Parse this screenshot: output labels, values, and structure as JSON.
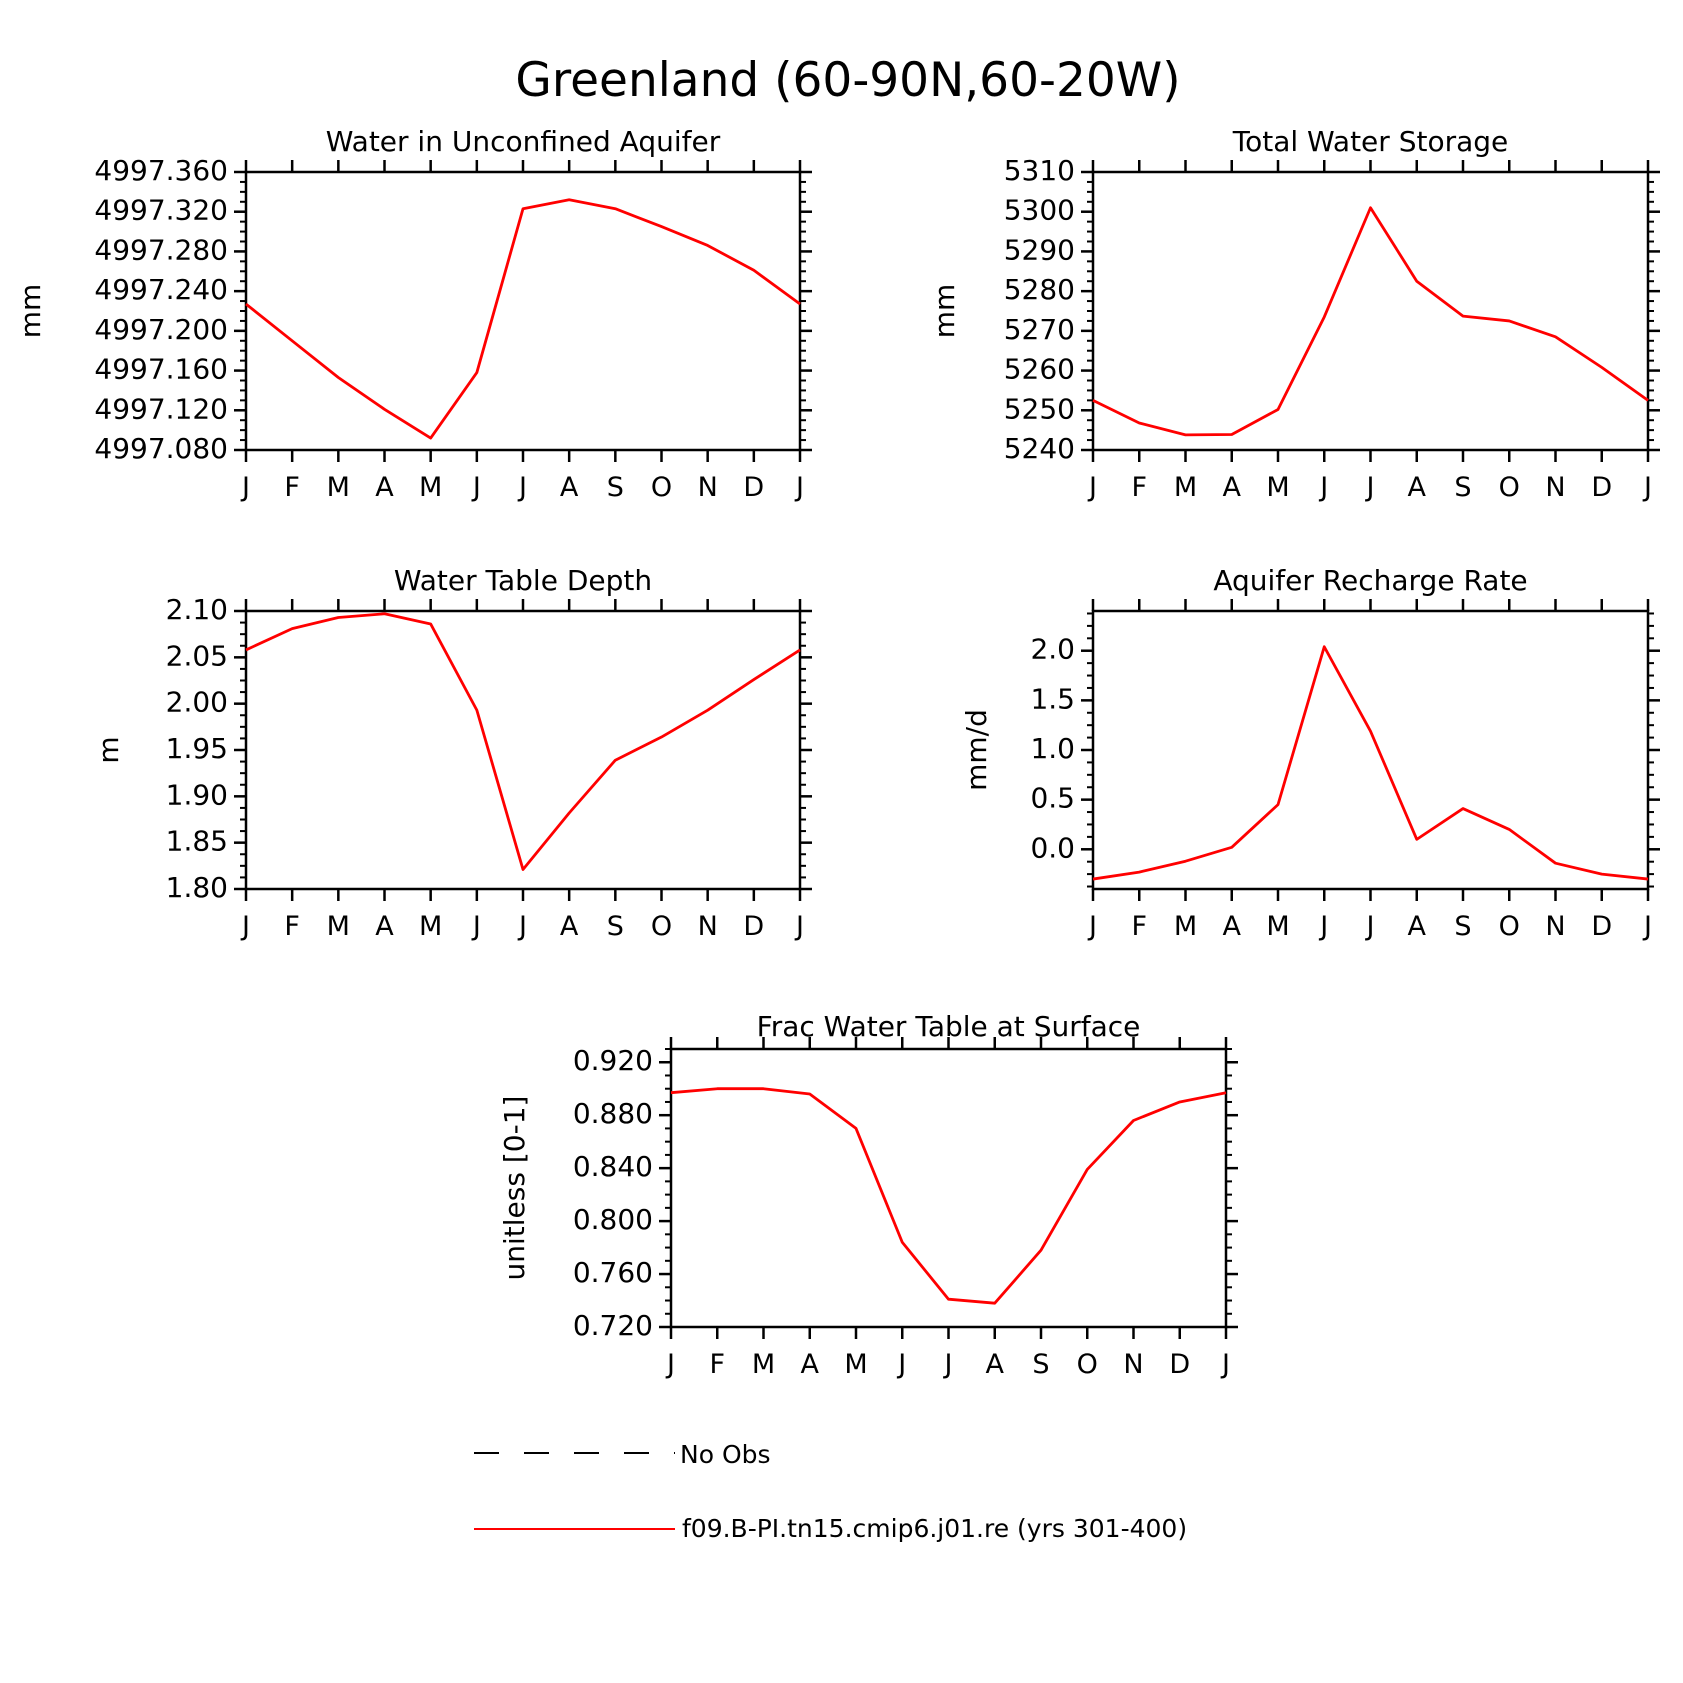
{
  "title": "Greenland (60-90N,60-20W)",
  "colors": {
    "series": "#ff0000",
    "axis": "#000000",
    "no_obs": "#000000"
  },
  "legend": {
    "placement": "bottom-center",
    "entries": [
      {
        "label": "No Obs",
        "style": "dashed",
        "color": "#000000"
      },
      {
        "label": "f09.B-PI.tn15.cmip6.j01.re (yrs 301-400)",
        "style": "solid",
        "color": "#ff0000"
      }
    ]
  },
  "chart_data": [
    {
      "type": "line",
      "title": "Water in Unconfined Aquifer",
      "xlabel": "",
      "ylabel": "mm",
      "categories": [
        "J",
        "F",
        "M",
        "A",
        "M",
        "J",
        "J",
        "A",
        "S",
        "O",
        "N",
        "D",
        "J"
      ],
      "ylim": [
        4997.08,
        4997.36
      ],
      "yticks": [
        4997.08,
        4997.12,
        4997.16,
        4997.2,
        4997.24,
        4997.28,
        4997.32,
        4997.36
      ],
      "ytick_labels": [
        "4997.080",
        "4997.120",
        "4997.160",
        "4997.200",
        "4997.240",
        "4997.280",
        "4997.320",
        "4997.360"
      ],
      "grid": false,
      "series": [
        {
          "name": "f09.B-PI.tn15.cmip6.j01.re (yrs 301-400)",
          "values": [
            4997.227,
            4997.19,
            4997.153,
            4997.121,
            4997.092,
            4997.158,
            4997.323,
            4997.332,
            4997.323,
            4997.305,
            4997.286,
            4997.261,
            4997.227
          ]
        }
      ]
    },
    {
      "type": "line",
      "title": "Total Water Storage",
      "xlabel": "",
      "ylabel": "mm",
      "categories": [
        "J",
        "F",
        "M",
        "A",
        "M",
        "J",
        "J",
        "A",
        "S",
        "O",
        "N",
        "D",
        "J"
      ],
      "ylim": [
        5240,
        5310
      ],
      "yticks": [
        5240,
        5250,
        5260,
        5270,
        5280,
        5290,
        5300,
        5310
      ],
      "ytick_labels": [
        "5240",
        "5250",
        "5260",
        "5270",
        "5280",
        "5290",
        "5300",
        "5310"
      ],
      "grid": false,
      "series": [
        {
          "name": "f09.B-PI.tn15.cmip6.j01.re (yrs 301-400)",
          "values": [
            5252.5,
            5246.8,
            5243.8,
            5243.9,
            5250.2,
            5273.5,
            5301,
            5282.5,
            5273.7,
            5272.5,
            5268.5,
            5260.8,
            5252.5
          ]
        }
      ]
    },
    {
      "type": "line",
      "title": "Water Table Depth",
      "xlabel": "",
      "ylabel": "m",
      "categories": [
        "J",
        "F",
        "M",
        "A",
        "M",
        "J",
        "J",
        "A",
        "S",
        "O",
        "N",
        "D",
        "J"
      ],
      "ylim": [
        1.8,
        2.1
      ],
      "yticks": [
        1.8,
        1.85,
        1.9,
        1.95,
        2.0,
        2.05,
        2.1
      ],
      "ytick_labels": [
        "1.80",
        "1.85",
        "1.90",
        "1.95",
        "2.00",
        "2.05",
        "2.10"
      ],
      "grid": false,
      "series": [
        {
          "name": "f09.B-PI.tn15.cmip6.j01.re (yrs 301-400)",
          "values": [
            2.058,
            2.081,
            2.093,
            2.097,
            2.086,
            1.993,
            1.821,
            1.882,
            1.939,
            1.964,
            1.993,
            2.026,
            2.058
          ]
        }
      ]
    },
    {
      "type": "line",
      "title": "Aquifer Recharge Rate",
      "xlabel": "",
      "ylabel": "mm/d",
      "categories": [
        "J",
        "F",
        "M",
        "A",
        "M",
        "J",
        "J",
        "A",
        "S",
        "O",
        "N",
        "D",
        "J"
      ],
      "ylim": [
        -0.4,
        2.4
      ],
      "yticks": [
        0.0,
        0.5,
        1.0,
        1.5,
        2.0
      ],
      "ytick_labels": [
        "0.0",
        "0.5",
        "1.0",
        "1.5",
        "2.0"
      ],
      "grid": false,
      "series": [
        {
          "name": "f09.B-PI.tn15.cmip6.j01.re (yrs 301-400)",
          "values": [
            -0.3,
            -0.23,
            -0.12,
            0.02,
            0.45,
            2.04,
            1.19,
            0.1,
            0.41,
            0.2,
            -0.14,
            -0.25,
            -0.3
          ]
        }
      ]
    },
    {
      "type": "line",
      "title": "Frac Water Table at Surface",
      "xlabel": "",
      "ylabel": "unitless [0-1]",
      "categories": [
        "J",
        "F",
        "M",
        "A",
        "M",
        "J",
        "J",
        "A",
        "S",
        "O",
        "N",
        "D",
        "J"
      ],
      "ylim": [
        0.72,
        0.93
      ],
      "yticks": [
        0.72,
        0.76,
        0.8,
        0.84,
        0.88,
        0.92
      ],
      "ytick_labels": [
        "0.720",
        "0.760",
        "0.800",
        "0.840",
        "0.880",
        "0.920"
      ],
      "grid": false,
      "series": [
        {
          "name": "f09.B-PI.tn15.cmip6.j01.re (yrs 301-400)",
          "values": [
            0.897,
            0.9,
            0.9,
            0.896,
            0.87,
            0.784,
            0.741,
            0.738,
            0.778,
            0.839,
            0.876,
            0.89,
            0.897
          ]
        }
      ]
    }
  ]
}
